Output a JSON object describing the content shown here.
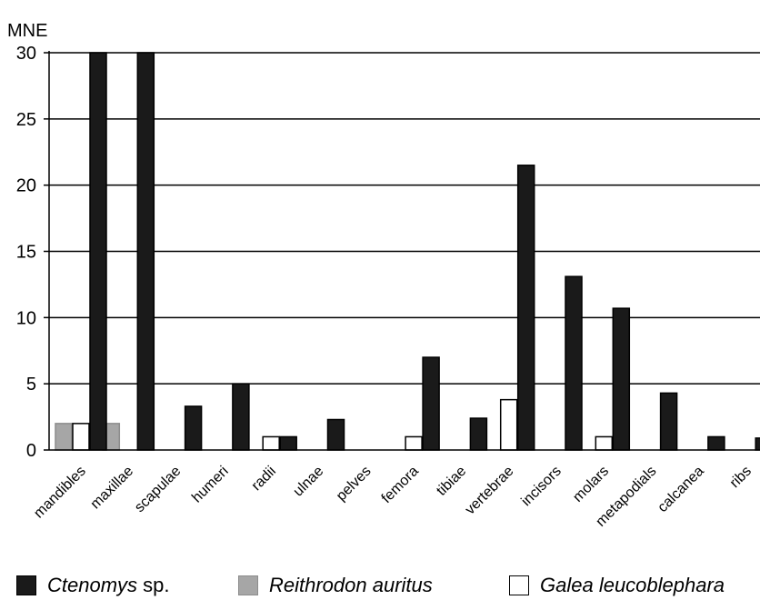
{
  "chart_data": {
    "type": "bar",
    "ylabel": "MNE",
    "ylim": [
      0,
      30
    ],
    "yticks": [
      0,
      5,
      10,
      15,
      20,
      25,
      30
    ],
    "grid": true,
    "legend_position": "bottom",
    "categories": [
      "mandibles",
      "maxillae",
      "scapulae",
      "humeri",
      "radii",
      "ulnae",
      "pelves",
      "femora",
      "tibiae",
      "vertebrae",
      "incisors",
      "molars",
      "metapodials",
      "calcanea",
      "ribs"
    ],
    "series": [
      {
        "name": "Reithrodon auritus",
        "name_italic": "Reithrodon auritus",
        "name_suffix": "",
        "color": "#a6a6a6",
        "values": [
          2,
          2,
          0,
          0,
          0,
          0,
          0,
          0,
          0,
          0,
          0,
          0,
          0,
          0,
          0
        ]
      },
      {
        "name": "Galea leucoblephara",
        "name_italic": "Galea leucoblephara",
        "name_suffix": "",
        "color": "#ffffff",
        "values": [
          2,
          0,
          0,
          0,
          1,
          0,
          0,
          1,
          0,
          3.8,
          0,
          1,
          0,
          0,
          0
        ]
      },
      {
        "name": "Ctenomys sp.",
        "name_italic": "Ctenomys",
        "name_suffix": " sp.",
        "color": "#1a1a1a",
        "values": [
          30,
          30,
          3.3,
          5,
          1,
          2.3,
          0,
          7,
          2.4,
          21.5,
          13.1,
          10.7,
          4.3,
          1,
          0.9
        ]
      }
    ]
  }
}
